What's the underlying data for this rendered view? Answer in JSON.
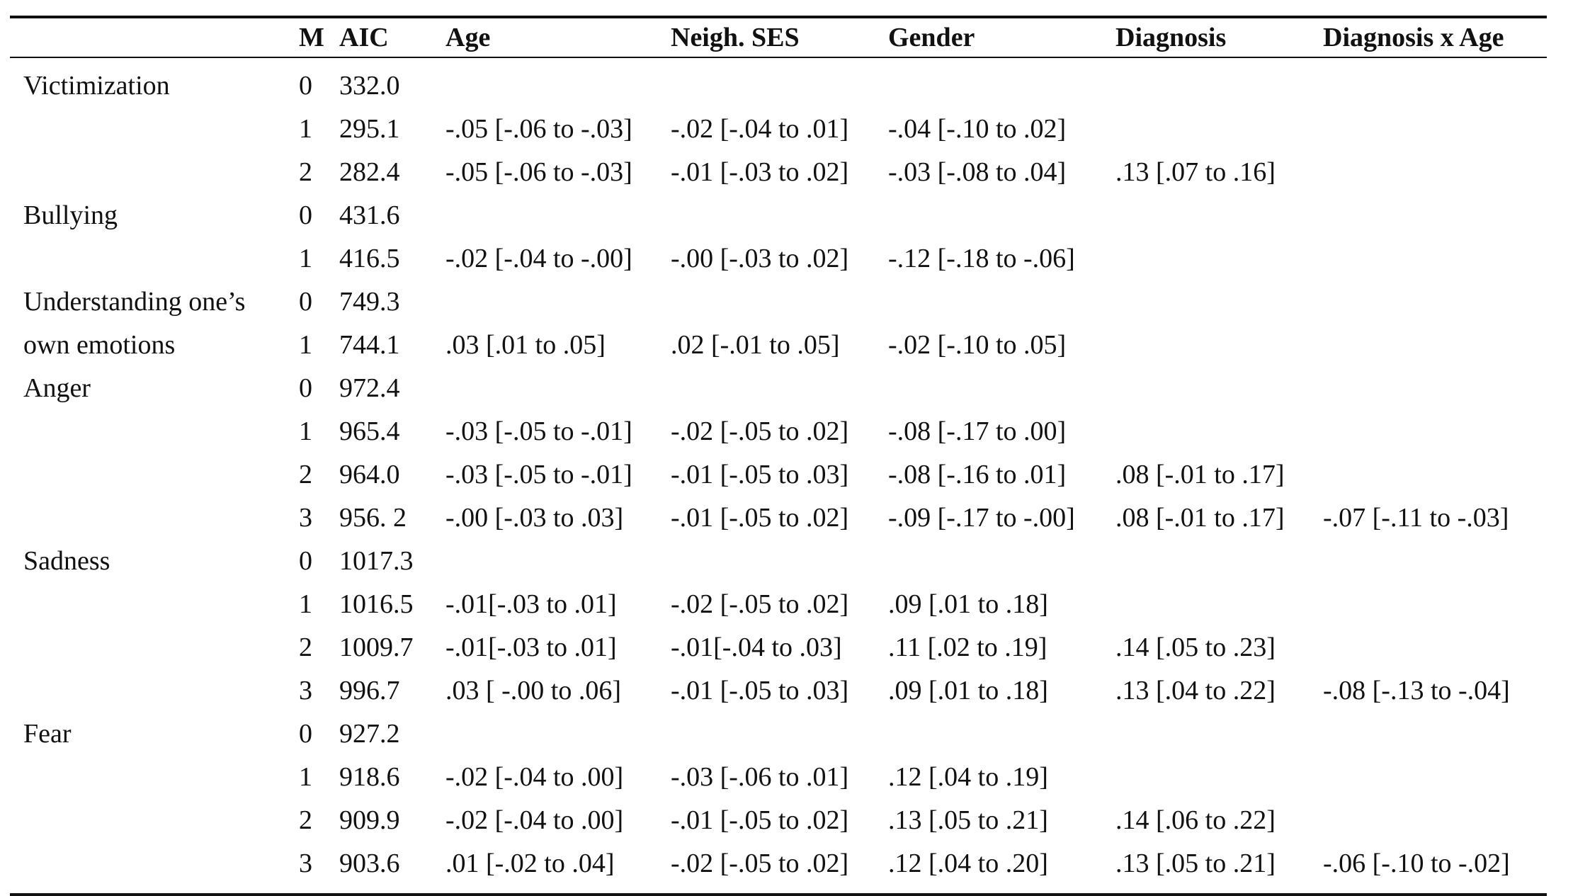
{
  "table": {
    "headers": [
      "",
      "M",
      "AIC",
      "Age",
      "Neigh. SES",
      "Gender",
      "Diagnosis",
      "Diagnosis x Age"
    ],
    "rows": [
      [
        "Victimization",
        "0",
        "332.0",
        "",
        "",
        "",
        "",
        ""
      ],
      [
        "",
        "1",
        "295.1",
        "-.05 [-.06 to -.03]",
        "-.02 [-.04 to .01]",
        "-.04 [-.10 to .02]",
        "",
        ""
      ],
      [
        "",
        "2",
        "282.4",
        "-.05 [-.06 to -.03]",
        "-.01 [-.03 to .02]",
        "-.03 [-.08 to .04]",
        ".13 [.07 to .16]",
        ""
      ],
      [
        "Bullying",
        "0",
        "431.6",
        "",
        "",
        "",
        "",
        ""
      ],
      [
        "",
        "1",
        "416.5",
        "-.02 [-.04 to -.00]",
        "-.00 [-.03 to .02]",
        "-.12 [-.18 to -.06]",
        "",
        ""
      ],
      [
        "Understanding one’s",
        "0",
        "749.3",
        "",
        "",
        "",
        "",
        ""
      ],
      [
        "own emotions",
        "1",
        "744.1",
        ".03 [.01 to .05]",
        ".02 [-.01 to .05]",
        "-.02 [-.10 to .05]",
        "",
        ""
      ],
      [
        "Anger",
        "0",
        "972.4",
        "",
        "",
        "",
        "",
        ""
      ],
      [
        "",
        "1",
        "965.4",
        "-.03 [-.05 to -.01]",
        "-.02 [-.05 to .02]",
        "-.08 [-.17 to .00]",
        "",
        ""
      ],
      [
        "",
        "2",
        "964.0",
        "-.03 [-.05 to -.01]",
        "-.01 [-.05 to .03]",
        "-.08 [-.16 to .01]",
        ".08 [-.01 to .17]",
        ""
      ],
      [
        "",
        "3",
        "956. 2",
        "-.00 [-.03 to .03]",
        "-.01 [-.05 to .02]",
        "-.09 [-.17 to -.00]",
        ".08 [-.01 to .17]",
        "-.07 [-.11 to -.03]"
      ],
      [
        "Sadness",
        "0",
        "1017.3",
        "",
        "",
        "",
        "",
        ""
      ],
      [
        "",
        "1",
        "1016.5",
        "-.01[-.03 to .01]",
        "-.02 [-.05 to .02]",
        ".09 [.01 to .18]",
        "",
        ""
      ],
      [
        "",
        "2",
        "1009.7",
        "-.01[-.03 to .01]",
        "-.01[-.04 to .03]",
        ".11 [.02 to .19]",
        ".14 [.05 to .23]",
        ""
      ],
      [
        "",
        "3",
        "996.7",
        ".03 [ -.00 to .06]",
        "-.01 [-.05 to .03]",
        ".09 [.01 to .18]",
        ".13 [.04 to .22]",
        "-.08 [-.13 to -.04]"
      ],
      [
        "Fear",
        "0",
        "927.2",
        "",
        "",
        "",
        "",
        ""
      ],
      [
        "",
        "1",
        "918.6",
        "-.02 [-.04 to .00]",
        "-.03 [-.06 to .01]",
        ".12 [.04 to .19]",
        "",
        ""
      ],
      [
        "",
        "2",
        "909.9",
        "-.02 [-.04 to .00]",
        "-.01 [-.05 to .02]",
        ".13 [.05 to .21]",
        ".14 [.06 to .22]",
        ""
      ],
      [
        "",
        "3",
        "903.6",
        ".01 [-.02 to .04]",
        "-.02 [-.05 to .02]",
        ".12 [.04 to .20]",
        ".13 [.05 to .21]",
        "-.06 [-.10 to -.02]"
      ]
    ]
  }
}
